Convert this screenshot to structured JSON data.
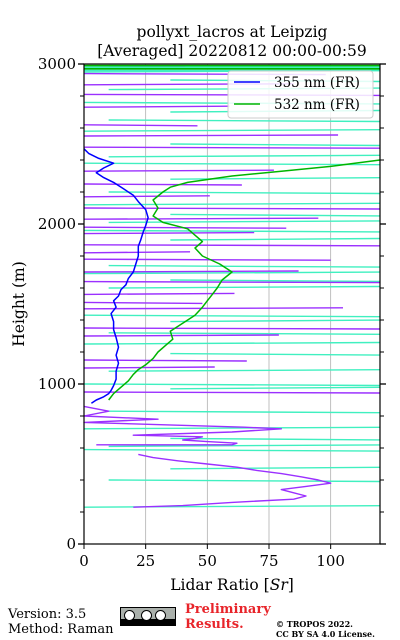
{
  "chart_data": {
    "type": "line",
    "title_line1": "pollyxt_lacros at Leipzig",
    "title_line2": "[Averaged] 20220812 00:00-00:59",
    "xlabel": "Lidar Ratio [",
    "xlabel_unit": "Sr",
    "xlabel_end": "]",
    "ylabel": "Height (m)",
    "xlim": [
      0,
      120
    ],
    "ylim": [
      0,
      3000
    ],
    "x_ticks": [
      0,
      25,
      50,
      75,
      100
    ],
    "x_tick_labels": [
      "0",
      "25",
      "50",
      "75",
      "100"
    ],
    "y_major_ticks": [
      0,
      1000,
      2000,
      3000
    ],
    "y_tick_labels": [
      "0",
      "1000",
      "2000",
      "3000"
    ],
    "y_minor_ticks": [
      200,
      400,
      600,
      800,
      1200,
      1400,
      1600,
      1800,
      2200,
      2400,
      2600,
      2800
    ],
    "grid": true,
    "legend_position": "top-right",
    "colors": {
      "s355": "#0000ff",
      "s532": "#00b400",
      "uncert355": "#9b30ff",
      "uncert532": "#40f0c0"
    },
    "series": [
      {
        "name": "355 nm (FR)",
        "color": "#0000ff",
        "points": [
          [
            3,
            880
          ],
          [
            5,
            900
          ],
          [
            8,
            920
          ],
          [
            10,
            940
          ],
          [
            11,
            960
          ],
          [
            12,
            990
          ],
          [
            13,
            1030
          ],
          [
            13,
            1080
          ],
          [
            14,
            1130
          ],
          [
            13,
            1180
          ],
          [
            14,
            1230
          ],
          [
            13,
            1290
          ],
          [
            12,
            1340
          ],
          [
            12,
            1390
          ],
          [
            11,
            1440
          ],
          [
            13,
            1480
          ],
          [
            12,
            1520
          ],
          [
            14,
            1550
          ],
          [
            15,
            1590
          ],
          [
            17,
            1620
          ],
          [
            18,
            1660
          ],
          [
            20,
            1700
          ],
          [
            21,
            1750
          ],
          [
            22,
            1800
          ],
          [
            22,
            1860
          ],
          [
            23,
            1900
          ],
          [
            24,
            1950
          ],
          [
            25,
            1990
          ],
          [
            26,
            2040
          ],
          [
            25,
            2090
          ],
          [
            22,
            2140
          ],
          [
            20,
            2180
          ],
          [
            16,
            2220
          ],
          [
            12,
            2260
          ],
          [
            8,
            2290
          ],
          [
            5,
            2320
          ],
          [
            8,
            2350
          ],
          [
            12,
            2380
          ],
          [
            6,
            2410
          ],
          [
            2,
            2440
          ],
          [
            0,
            2470
          ]
        ]
      },
      {
        "name": "532 nm (FR)",
        "color": "#00b400",
        "points": [
          [
            10,
            900
          ],
          [
            12,
            940
          ],
          [
            15,
            980
          ],
          [
            18,
            1020
          ],
          [
            20,
            1060
          ],
          [
            22,
            1090
          ],
          [
            25,
            1120
          ],
          [
            28,
            1160
          ],
          [
            30,
            1200
          ],
          [
            33,
            1240
          ],
          [
            36,
            1280
          ],
          [
            35,
            1330
          ],
          [
            40,
            1380
          ],
          [
            45,
            1430
          ],
          [
            48,
            1480
          ],
          [
            50,
            1520
          ],
          [
            52,
            1560
          ],
          [
            54,
            1600
          ],
          [
            56,
            1650
          ],
          [
            60,
            1700
          ],
          [
            55,
            1750
          ],
          [
            48,
            1800
          ],
          [
            45,
            1850
          ],
          [
            48,
            1890
          ],
          [
            45,
            1930
          ],
          [
            42,
            1970
          ],
          [
            32,
            2010
          ],
          [
            28,
            2050
          ],
          [
            30,
            2100
          ],
          [
            28,
            2150
          ],
          [
            32,
            2200
          ],
          [
            35,
            2230
          ],
          [
            42,
            2260
          ],
          [
            60,
            2300
          ],
          [
            80,
            2330
          ],
          [
            100,
            2360
          ],
          [
            120,
            2400
          ]
        ]
      }
    ],
    "uncertainty_355": [
      [
        22,
        560
      ],
      [
        28,
        540
      ],
      [
        38,
        520
      ],
      [
        50,
        500
      ],
      [
        62,
        480
      ],
      [
        70,
        460
      ],
      [
        80,
        440
      ],
      [
        88,
        420
      ],
      [
        95,
        400
      ],
      [
        100,
        380
      ],
      [
        90,
        360
      ],
      [
        80,
        340
      ],
      [
        85,
        320
      ],
      [
        90,
        300
      ],
      [
        85,
        280
      ],
      [
        60,
        260
      ],
      [
        40,
        240
      ],
      [
        20,
        230
      ]
    ],
    "uncertainty_355_upper": [
      [
        5,
        620
      ],
      [
        60,
        620
      ],
      [
        62,
        630
      ],
      [
        50,
        640
      ],
      [
        40,
        650
      ],
      [
        45,
        660
      ],
      [
        48,
        670
      ],
      [
        20,
        680
      ],
      [
        60,
        700
      ],
      [
        70,
        710
      ],
      [
        80,
        720
      ],
      [
        65,
        730
      ],
      [
        0,
        760
      ],
      [
        30,
        780
      ],
      [
        0,
        800
      ],
      [
        10,
        830
      ],
      [
        0,
        860
      ]
    ],
    "noise_levels_355": [
      950,
      1100,
      1150,
      1300,
      1350,
      1470,
      1510,
      1560,
      1640,
      1700,
      1780,
      1820,
      1870,
      1940,
      1980,
      2030,
      2100,
      2170,
      2250,
      2330,
      2480,
      2550,
      2620,
      2730,
      2810,
      2870,
      2940,
      2980
    ],
    "noise_levels_532": [
      230,
      400,
      470,
      590,
      610,
      660,
      720,
      830,
      970,
      1000,
      1080,
      1190,
      1250,
      1320,
      1390,
      1430,
      1600,
      1650,
      1690,
      1740,
      1900,
      1960,
      2010,
      2060,
      2120,
      2200,
      2280,
      2380,
      2420,
      2500,
      2580,
      2650,
      2700,
      2760,
      2840,
      2900,
      2950,
      2990
    ]
  },
  "footer": {
    "version": "Version: 3.5",
    "method": "Method: Raman",
    "prelim_line1": "Preliminary",
    "prelim_line2": "Results.",
    "license_line1": "© TROPOS 2022.",
    "license_line2": "CC BY SA 4.0 License."
  }
}
